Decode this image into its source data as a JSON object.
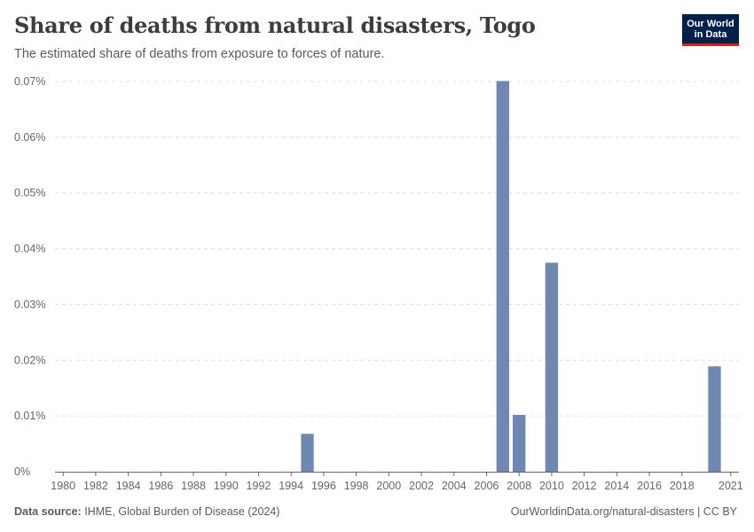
{
  "header": {
    "title": "Share of deaths from natural disasters, Togo",
    "subtitle": "The estimated share of deaths from exposure to forces of nature."
  },
  "logo": {
    "line1": "Our World",
    "line2": "in Data"
  },
  "footer": {
    "source_label": "Data source:",
    "source_text": "IHME, Global Burden of Disease (2024)",
    "right_text": "OurWorldinData.org/natural-disasters | CC BY"
  },
  "colors": {
    "bar": "#6e88b2",
    "grid": "#dddddd",
    "axis": "#666666"
  },
  "chart_data": {
    "type": "bar",
    "title": "Share of deaths from natural disasters, Togo",
    "xlabel": "",
    "ylabel": "",
    "x_range": [
      1980,
      2021
    ],
    "ylim": [
      0,
      0.07
    ],
    "y_ticks": [
      0,
      0.01,
      0.02,
      0.03,
      0.04,
      0.05,
      0.06,
      0.07
    ],
    "y_tick_labels": [
      "0%",
      "0.01%",
      "0.02%",
      "0.03%",
      "0.04%",
      "0.05%",
      "0.06%",
      "0.07%"
    ],
    "x_ticks": [
      1980,
      1982,
      1984,
      1986,
      1988,
      1990,
      1992,
      1994,
      1996,
      1998,
      2000,
      2002,
      2004,
      2006,
      2008,
      2010,
      2012,
      2014,
      2016,
      2018,
      2021
    ],
    "x_tick_labels": [
      "1980",
      "1982",
      "1984",
      "1986",
      "1988",
      "1990",
      "1992",
      "1994",
      "1996",
      "1998",
      "2000",
      "2002",
      "2004",
      "2006",
      "2008",
      "2010",
      "2012",
      "2014",
      "2016",
      "2018",
      "2021"
    ],
    "unit": "%",
    "series": [
      {
        "name": "Share of deaths from natural disasters",
        "points": [
          {
            "x": 1995,
            "y": 0.0068
          },
          {
            "x": 2007,
            "y": 0.0701
          },
          {
            "x": 2008,
            "y": 0.0102
          },
          {
            "x": 2010,
            "y": 0.0375
          },
          {
            "x": 2020,
            "y": 0.0189
          }
        ]
      }
    ]
  }
}
